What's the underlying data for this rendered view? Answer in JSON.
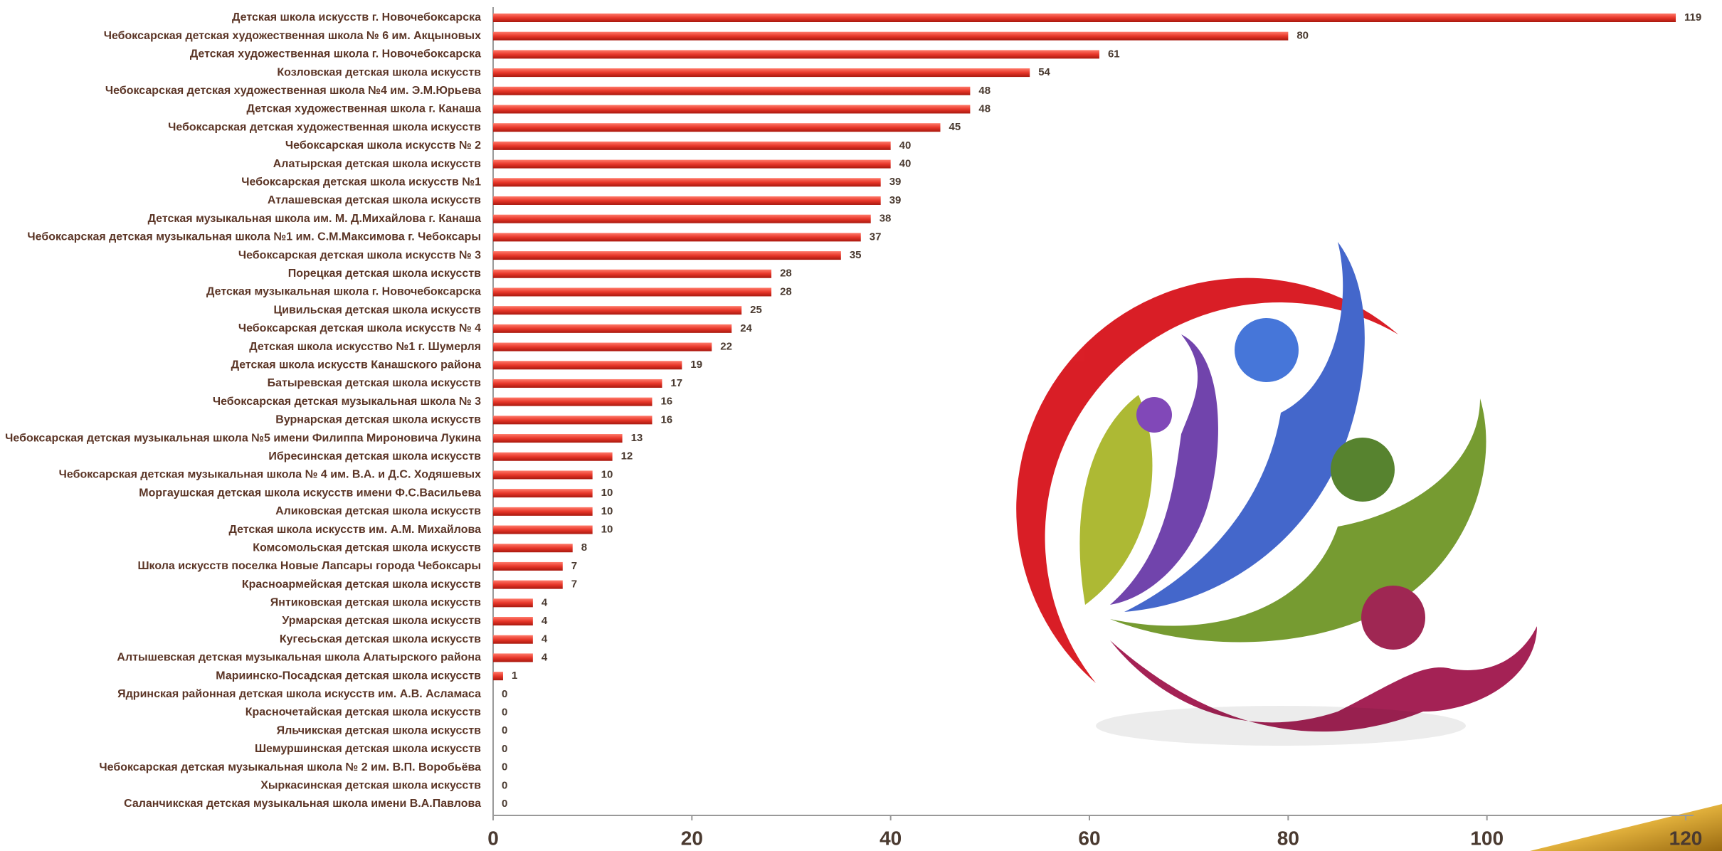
{
  "chart_data": {
    "type": "bar",
    "orientation": "horizontal",
    "color": "#e8372a",
    "categories": [
      "Детская школа искусств г. Новочебоксарска",
      "Чебоксарская детская художественная школа № 6 им. Акцыновых",
      "Детская художественная школа г. Новочебоксарска",
      "Козловская детская школа искусств",
      "Чебоксарская детская художественная школа №4 им. Э.М.Юрьева",
      "Детская художественная школа г. Канаша",
      "Чебоксарская детская художественная школа искусств",
      "Чебоксарская школа искусств № 2",
      "Алатырская детская школа искусств",
      "Чебоксарская детская школа искусств №1",
      "Атлашевская детская школа искусств",
      "Детская музыкальная школа им. М. Д.Михайлова г. Канаша",
      "Чебоксарская детская музыкальная школа №1 им. С.М.Максимова г. Чебоксары",
      "Чебоксарская детская школа искусств № 3",
      "Порецкая детская школа искусств",
      "Детская музыкальная школа г. Новочебоксарска",
      "Цивильская детская школа искусств",
      "Чебоксарская детская школа искусств № 4",
      "Детская школа искусство №1 г. Шумерля",
      "Детская школа искусств Канашского района",
      "Батыревская детская школа искусств",
      "Чебоксарская детская музыкальная школа № 3",
      "Вурнарская детская школа искусств",
      "Чебоксарская детская музыкальная школа №5 имени Филиппа Мироновича Лукина",
      "Ибресинская детская школа искусств",
      "Чебоксарская детская музыкальная школа № 4 им. В.А. и Д.С. Ходяшевых",
      "Моргаушская детская школа искусств имени Ф.С.Васильева",
      "Аликовская детская школа искусств",
      "Детская школа искусств им. А.М. Михайлова",
      "Комсомольская детская школа искусств",
      "Школа искусств поселка Новые Лапсары города Чебоксары",
      "Красноармейская детская школа искусств",
      "Янтиковская детская школа искусств",
      "Урмарская детская школа искусств",
      "Кугесьская детская школа искусств",
      "Алтышевская детская музыкальная школа Алатырского района",
      "Мариинско-Посадская детская школа искусств",
      "Ядринская районная детская школа искусств им. А.В. Асламаса",
      "Красночетайская детская школа искусств",
      "Яльчикская детская школа искусств",
      "Шемуршинская детская школа искусств",
      "Чебоксарская детская музыкальная школа № 2 им. В.П. Воробьёва",
      "Хыркасинская детская школа искусств",
      "Саланчикская детская музыкальная школа имени В.А.Павлова"
    ],
    "values": [
      119,
      80,
      61,
      54,
      48,
      48,
      45,
      40,
      40,
      39,
      39,
      38,
      37,
      35,
      28,
      28,
      25,
      24,
      22,
      19,
      17,
      16,
      16,
      13,
      12,
      10,
      10,
      10,
      10,
      8,
      7,
      7,
      4,
      4,
      4,
      4,
      1,
      0,
      0,
      0,
      0,
      0,
      0,
      0
    ],
    "xlim": [
      0,
      120
    ],
    "xticks": [
      0,
      20,
      40,
      60,
      80,
      100,
      120
    ]
  }
}
